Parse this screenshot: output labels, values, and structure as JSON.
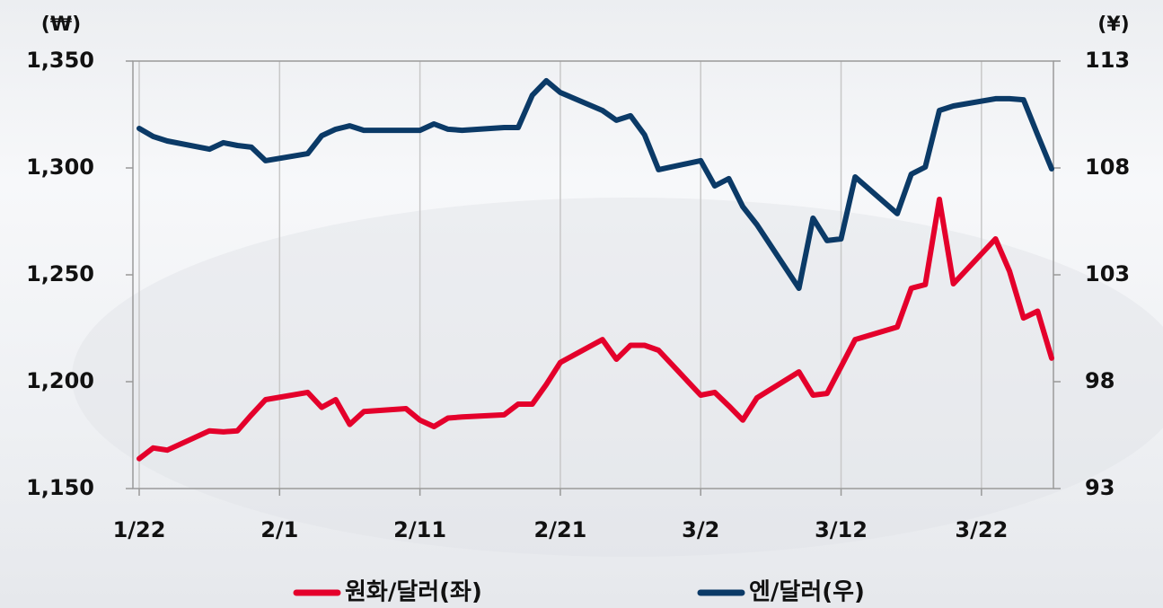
{
  "chart_data": {
    "type": "line",
    "y_label": "(₩)",
    "y2_label": "(¥)",
    "x": [
      "1/22",
      "1/23",
      "1/24",
      "1/27",
      "1/28",
      "1/29",
      "1/30",
      "1/31",
      "2/3",
      "2/4",
      "2/5",
      "2/6",
      "2/7",
      "2/10",
      "2/11",
      "2/12",
      "2/13",
      "2/14",
      "2/17",
      "2/18",
      "2/19",
      "2/20",
      "2/21",
      "2/24",
      "2/25",
      "2/26",
      "2/27",
      "2/28",
      "3/2",
      "3/3",
      "3/4",
      "3/5",
      "3/6",
      "3/9",
      "3/10",
      "3/11",
      "3/12",
      "3/13",
      "3/16",
      "3/17",
      "3/18",
      "3/19",
      "3/20",
      "3/23",
      "3/24",
      "3/25",
      "3/26",
      "3/27"
    ],
    "xlim": [
      "1/22",
      "3/27"
    ],
    "xticks": [
      "1/22",
      "2/1",
      "2/11",
      "2/21",
      "3/2",
      "3/12",
      "3/22"
    ],
    "ylim": [
      1150,
      1350
    ],
    "yticks": [
      {
        "value": 1150,
        "label": "1,150"
      },
      {
        "value": 1200,
        "label": "1,200"
      },
      {
        "value": 1250,
        "label": "1,250"
      },
      {
        "value": 1300,
        "label": "1,300"
      },
      {
        "value": 1350,
        "label": "1,350"
      }
    ],
    "y2lim": [
      93,
      113
    ],
    "y2ticks": [
      93,
      98,
      103,
      108,
      113
    ],
    "grid": "x",
    "series": [
      {
        "name": "원화/달러(좌)",
        "color": "#e4002b",
        "axis": "y",
        "values": [
          1164,
          1169,
          1168,
          1177,
          1176.5,
          1177,
          1184.5,
          1191.6,
          1195,
          1188,
          1191.6,
          1180,
          1186,
          1187.4,
          1182,
          1179,
          1183,
          1183.5,
          1184.5,
          1189.5,
          1189.5,
          1198.7,
          1209,
          1219.7,
          1210.5,
          1217,
          1217,
          1214.7,
          1193.7,
          1195,
          1188.7,
          1182,
          1192.4,
          1204.6,
          1193.7,
          1194.5,
          1207,
          1219.7,
          1225.6,
          1243.7,
          1245.4,
          1285.3,
          1245.8,
          1266.8,
          1251.7,
          1229.8,
          1233,
          1211
        ]
      },
      {
        "name": "엔/달러(우)",
        "color": "#0b3a67",
        "axis": "y2",
        "values": [
          109.85,
          109.47,
          109.26,
          108.88,
          109.18,
          109.05,
          108.97,
          108.34,
          108.67,
          109.51,
          109.81,
          109.97,
          109.76,
          109.76,
          109.76,
          110.06,
          109.81,
          109.76,
          109.89,
          109.89,
          111.4,
          112.08,
          111.53,
          110.69,
          110.23,
          110.44,
          109.55,
          107.92,
          108.34,
          107.16,
          107.5,
          106.19,
          105.35,
          102.37,
          105.65,
          104.6,
          104.68,
          107.58,
          105.86,
          107.71,
          108.04,
          110.69,
          110.9,
          111.24,
          111.24,
          111.19,
          109.55,
          107.96
        ]
      }
    ]
  }
}
